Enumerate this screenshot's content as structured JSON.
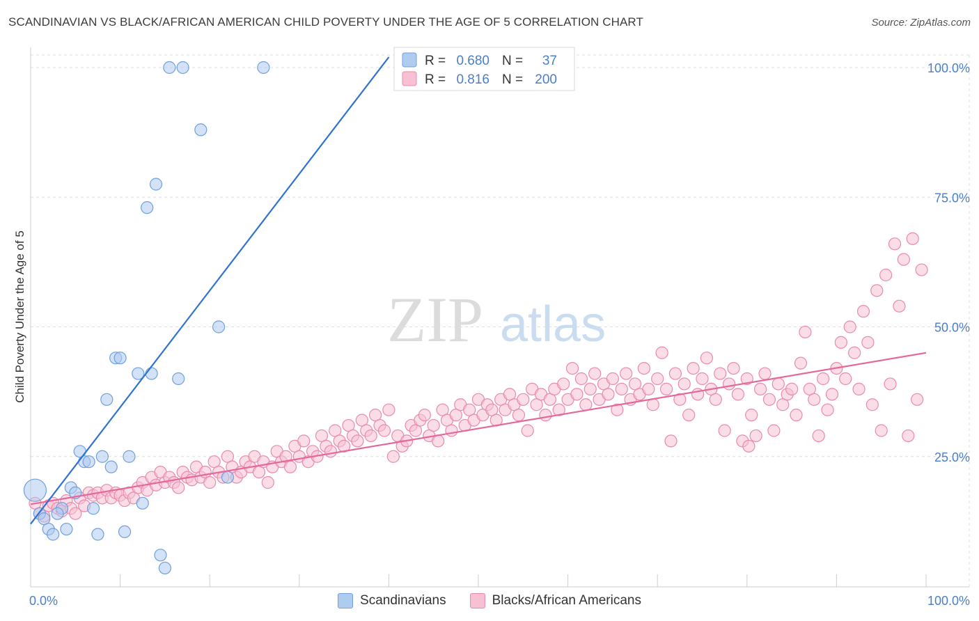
{
  "title": "SCANDINAVIAN VS BLACK/AFRICAN AMERICAN CHILD POVERTY UNDER THE AGE OF 5 CORRELATION CHART",
  "source": "Source: ZipAtlas.com",
  "watermark": {
    "zip": "ZIP",
    "atlas": "atlas"
  },
  "colors": {
    "blue_fill": "#aecbf0",
    "blue_stroke": "#6f9fdc",
    "blue_line": "#2f72cf",
    "pink_fill": "#f7c1d3",
    "pink_stroke": "#e98aab",
    "pink_line": "#e3699b",
    "axis_text": "#4a7ec9",
    "grid": "#dddddd"
  },
  "stats": {
    "r_label": "R =",
    "n_label": "N =",
    "rows": [
      {
        "r": "0.680",
        "n": "37"
      },
      {
        "r": "0.816",
        "n": "200"
      }
    ]
  },
  "chart_data": {
    "type": "scatter",
    "title": "SCANDINAVIAN VS BLACK/AFRICAN AMERICAN CHILD POVERTY UNDER THE AGE OF 5 CORRELATION CHART",
    "ylabel": "Child Poverty Under the Age of 5",
    "xlabel": "",
    "x_ticks": [
      "0.0%",
      "100.0%"
    ],
    "y_ticks": [
      "25.0%",
      "50.0%",
      "75.0%",
      "100.0%"
    ],
    "xlim": [
      0,
      100
    ],
    "ylim": [
      0,
      100
    ],
    "grid": true,
    "legend_position": "bottom-center",
    "series": [
      {
        "name": "Scandinavians",
        "trend": [
          [
            0,
            12
          ],
          [
            40,
            102
          ]
        ],
        "points": [
          [
            0.5,
            18.5
          ],
          [
            1.0,
            14.0
          ],
          [
            1.5,
            13.0
          ],
          [
            2.0,
            11.0
          ],
          [
            2.5,
            10.0
          ],
          [
            3.5,
            15.0
          ],
          [
            4.0,
            11.0
          ],
          [
            4.5,
            19.0
          ],
          [
            5.0,
            18.0
          ],
          [
            5.5,
            26.0
          ],
          [
            6.0,
            24.0
          ],
          [
            6.5,
            24.0
          ],
          [
            7.0,
            15.0
          ],
          [
            7.5,
            10.0
          ],
          [
            8.0,
            25.0
          ],
          [
            8.5,
            36.0
          ],
          [
            9.0,
            23.0
          ],
          [
            9.5,
            44.0
          ],
          [
            10.0,
            44.0
          ],
          [
            10.5,
            10.5
          ],
          [
            11.0,
            25.0
          ],
          [
            12.0,
            41.0
          ],
          [
            12.5,
            16.0
          ],
          [
            13.0,
            73.0
          ],
          [
            13.5,
            41.0
          ],
          [
            14.0,
            77.5
          ],
          [
            14.5,
            6.0
          ],
          [
            15.0,
            3.5
          ],
          [
            15.5,
            100.0
          ],
          [
            17.0,
            100.0
          ],
          [
            16.5,
            40.0
          ],
          [
            19.0,
            88.0
          ],
          [
            21.0,
            50.0
          ],
          [
            22.0,
            21.0
          ],
          [
            26.0,
            100.0
          ],
          [
            52.0,
            100.0
          ],
          [
            3.0,
            14.0
          ]
        ]
      },
      {
        "name": "Blacks/African Americans",
        "trend": [
          [
            0,
            15.8
          ],
          [
            100,
            45.0
          ]
        ],
        "points": [
          [
            0.5,
            16
          ],
          [
            1.0,
            14
          ],
          [
            1.5,
            13.5
          ],
          [
            2.0,
            15.5
          ],
          [
            2.5,
            16
          ],
          [
            3.0,
            15
          ],
          [
            3.5,
            14.5
          ],
          [
            4.0,
            16.5
          ],
          [
            4.5,
            15
          ],
          [
            5.0,
            14
          ],
          [
            5.5,
            17
          ],
          [
            6.0,
            15.5
          ],
          [
            6.5,
            18
          ],
          [
            7.0,
            17.5
          ],
          [
            7.5,
            18
          ],
          [
            8.0,
            17
          ],
          [
            8.5,
            18.5
          ],
          [
            9.0,
            17
          ],
          [
            9.5,
            18
          ],
          [
            10.0,
            17.5
          ],
          [
            10.5,
            16.5
          ],
          [
            11.0,
            18
          ],
          [
            11.5,
            17
          ],
          [
            12.0,
            19
          ],
          [
            12.5,
            20
          ],
          [
            13.0,
            18.5
          ],
          [
            13.5,
            21
          ],
          [
            14.0,
            19.5
          ],
          [
            14.5,
            22
          ],
          [
            15.0,
            20
          ],
          [
            15.5,
            21
          ],
          [
            16.0,
            20
          ],
          [
            16.5,
            19
          ],
          [
            17.0,
            22
          ],
          [
            17.5,
            21
          ],
          [
            18.0,
            20.5
          ],
          [
            18.5,
            23
          ],
          [
            19.0,
            21
          ],
          [
            19.5,
            22
          ],
          [
            20.0,
            20
          ],
          [
            20.5,
            24
          ],
          [
            21.0,
            22
          ],
          [
            21.5,
            21
          ],
          [
            22.0,
            25
          ],
          [
            22.5,
            23
          ],
          [
            23.0,
            21
          ],
          [
            23.5,
            22
          ],
          [
            24.0,
            24
          ],
          [
            24.5,
            23
          ],
          [
            25.0,
            25
          ],
          [
            25.5,
            22
          ],
          [
            26.0,
            24
          ],
          [
            26.5,
            20
          ],
          [
            27.0,
            23
          ],
          [
            27.5,
            26
          ],
          [
            28.0,
            24
          ],
          [
            28.5,
            25
          ],
          [
            29.0,
            23
          ],
          [
            29.5,
            27
          ],
          [
            30.0,
            25
          ],
          [
            30.5,
            28
          ],
          [
            31.0,
            24
          ],
          [
            31.5,
            26
          ],
          [
            32.0,
            25
          ],
          [
            32.5,
            29
          ],
          [
            33.0,
            27
          ],
          [
            33.5,
            26
          ],
          [
            34.0,
            30
          ],
          [
            34.5,
            28
          ],
          [
            35.0,
            27
          ],
          [
            35.5,
            31
          ],
          [
            36.0,
            29
          ],
          [
            36.5,
            28
          ],
          [
            37.0,
            32
          ],
          [
            37.5,
            30
          ],
          [
            38.0,
            29
          ],
          [
            38.5,
            33
          ],
          [
            39.0,
            31
          ],
          [
            39.5,
            30
          ],
          [
            40.0,
            34
          ],
          [
            40.5,
            25
          ],
          [
            41.0,
            29
          ],
          [
            41.5,
            27
          ],
          [
            42.0,
            28
          ],
          [
            42.5,
            31
          ],
          [
            43.0,
            30
          ],
          [
            43.5,
            32
          ],
          [
            44.0,
            33
          ],
          [
            44.5,
            29
          ],
          [
            45.0,
            31
          ],
          [
            45.5,
            28
          ],
          [
            46.0,
            34
          ],
          [
            46.5,
            32
          ],
          [
            47.0,
            30
          ],
          [
            47.5,
            33
          ],
          [
            48.0,
            35
          ],
          [
            48.5,
            31
          ],
          [
            49.0,
            34
          ],
          [
            49.5,
            32
          ],
          [
            50.0,
            36
          ],
          [
            50.5,
            33
          ],
          [
            51.0,
            35
          ],
          [
            51.5,
            34
          ],
          [
            52.0,
            32
          ],
          [
            52.5,
            36
          ],
          [
            53.0,
            34
          ],
          [
            53.5,
            37
          ],
          [
            54.0,
            35
          ],
          [
            54.5,
            33
          ],
          [
            55.0,
            36
          ],
          [
            55.5,
            30
          ],
          [
            56.0,
            38
          ],
          [
            56.5,
            35
          ],
          [
            57.0,
            37
          ],
          [
            57.5,
            33
          ],
          [
            58.0,
            36
          ],
          [
            58.5,
            38
          ],
          [
            59.0,
            34
          ],
          [
            59.5,
            39
          ],
          [
            60.0,
            36
          ],
          [
            60.5,
            42
          ],
          [
            61.0,
            37
          ],
          [
            61.5,
            40
          ],
          [
            62.0,
            35
          ],
          [
            62.5,
            38
          ],
          [
            63.0,
            41
          ],
          [
            63.5,
            36
          ],
          [
            64.0,
            39
          ],
          [
            64.5,
            37
          ],
          [
            65.0,
            40
          ],
          [
            65.5,
            34
          ],
          [
            66.0,
            38
          ],
          [
            66.5,
            41
          ],
          [
            67.0,
            36
          ],
          [
            67.5,
            39
          ],
          [
            68.0,
            37
          ],
          [
            68.5,
            42
          ],
          [
            69.0,
            38
          ],
          [
            69.5,
            35
          ],
          [
            70.0,
            40
          ],
          [
            70.5,
            45
          ],
          [
            71.0,
            38
          ],
          [
            71.5,
            28
          ],
          [
            72.0,
            41
          ],
          [
            72.5,
            36
          ],
          [
            73.0,
            39
          ],
          [
            73.5,
            33
          ],
          [
            74.0,
            42
          ],
          [
            74.5,
            37
          ],
          [
            75.0,
            40
          ],
          [
            75.5,
            44
          ],
          [
            76.0,
            38
          ],
          [
            76.5,
            36
          ],
          [
            77.0,
            41
          ],
          [
            77.5,
            30
          ],
          [
            78.0,
            39
          ],
          [
            78.5,
            42
          ],
          [
            79.0,
            37
          ],
          [
            79.5,
            28
          ],
          [
            80.0,
            40
          ],
          [
            80.5,
            33
          ],
          [
            81.0,
            29
          ],
          [
            81.5,
            38
          ],
          [
            82.0,
            41
          ],
          [
            82.5,
            36
          ],
          [
            83.0,
            30
          ],
          [
            83.5,
            39
          ],
          [
            84.0,
            35
          ],
          [
            84.5,
            37
          ],
          [
            85.0,
            38
          ],
          [
            85.5,
            33
          ],
          [
            86.0,
            43
          ],
          [
            86.5,
            49
          ],
          [
            87.0,
            38
          ],
          [
            87.5,
            36
          ],
          [
            88.0,
            29
          ],
          [
            88.5,
            40
          ],
          [
            89.0,
            34
          ],
          [
            89.5,
            37
          ],
          [
            90.0,
            42
          ],
          [
            90.5,
            47
          ],
          [
            91.0,
            40
          ],
          [
            91.5,
            50
          ],
          [
            92.0,
            45
          ],
          [
            92.5,
            38
          ],
          [
            93.0,
            53
          ],
          [
            93.5,
            47
          ],
          [
            94.0,
            35
          ],
          [
            94.5,
            57
          ],
          [
            95.0,
            30
          ],
          [
            95.5,
            60
          ],
          [
            96.0,
            39
          ],
          [
            96.5,
            66
          ],
          [
            97.0,
            54
          ],
          [
            97.5,
            63
          ],
          [
            98.0,
            29
          ],
          [
            98.5,
            67
          ],
          [
            99.0,
            36
          ],
          [
            99.5,
            61
          ],
          [
            80.2,
            27
          ]
        ]
      }
    ]
  }
}
